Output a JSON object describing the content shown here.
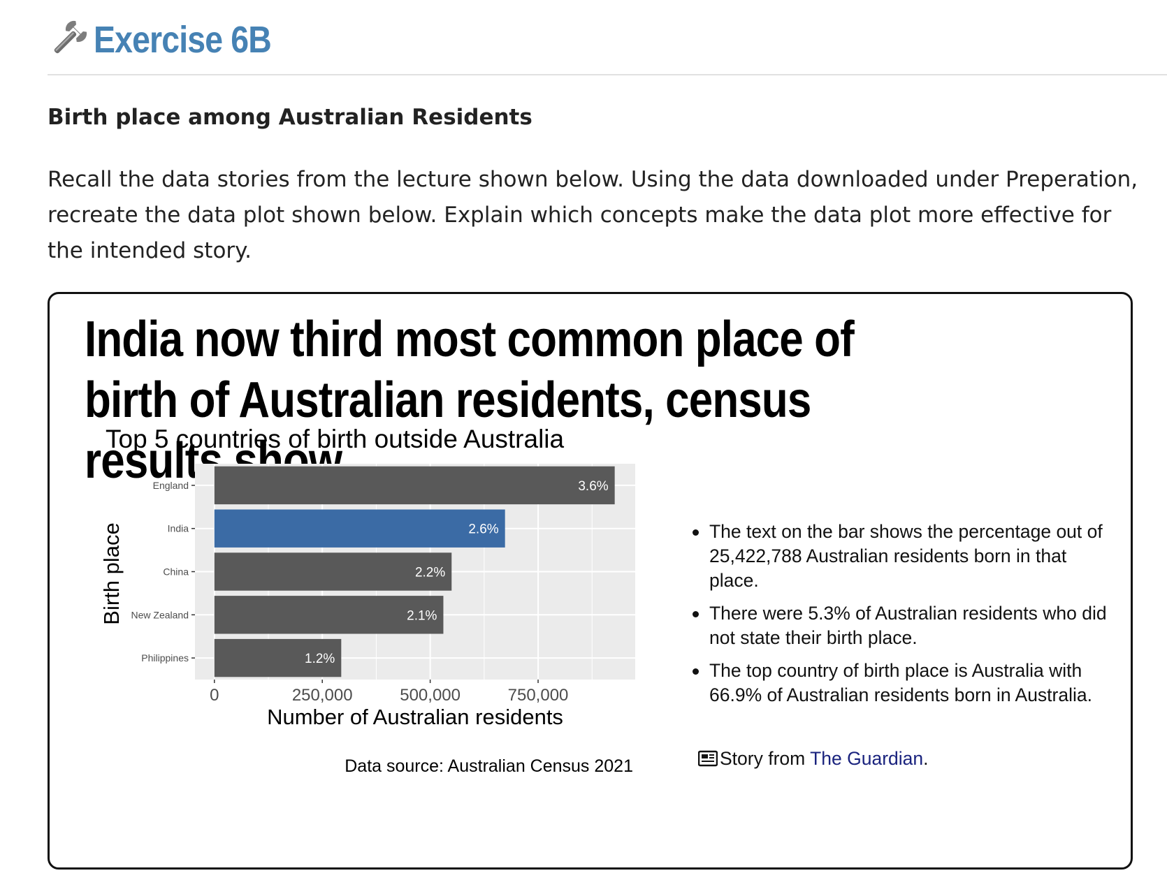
{
  "exercise": {
    "icon": "wrench-icon",
    "title": "Exercise 6B"
  },
  "section": {
    "heading": "Birth place among Australian Residents",
    "intro": "Recall the data stories from the lecture shown below. Using the data downloaded under Preperation, recreate the data plot shown below. Explain which concepts make the data plot more effective for the intended story."
  },
  "story": {
    "headline": "India now third most common place of birth of Australian residents, census results show",
    "notes": [
      "The text on the bar shows the percentage out of 25,422,788 Australian residents born in that place.",
      "There were 5.3% of Australian residents who did not state their birth place.",
      "The top country of birth place is Australia with 66.9% of Australian residents born in Australia."
    ],
    "source_prefix": "Story from ",
    "source_link": "The Guardian",
    "source_suffix": ".",
    "source_icon": "newspaper-icon"
  },
  "chart_data": {
    "type": "bar",
    "orientation": "horizontal",
    "title": "Top 5 countries of birth outside Australia",
    "xlabel": "Number of Australian residents",
    "ylabel": "Birth place",
    "caption": "Data source: Australian Census 2021",
    "categories": [
      "England",
      "India",
      "China",
      "New Zealand",
      "Philippines"
    ],
    "values": [
      927500,
      673350,
      549600,
      530500,
      293900
    ],
    "labels": [
      "3.6%",
      "2.6%",
      "2.2%",
      "2.1%",
      "1.2%"
    ],
    "highlight": "India",
    "xticks": [
      0,
      250000,
      500000,
      750000
    ],
    "xtick_labels": [
      "0",
      "250,000",
      "500,000",
      "750,000"
    ],
    "xlim": [
      -45000,
      975000
    ],
    "grid": true,
    "colors": {
      "bar": "#595959",
      "highlight": "#3b6ba5",
      "panel": "#ebebeb",
      "grid": "#ffffff"
    }
  }
}
